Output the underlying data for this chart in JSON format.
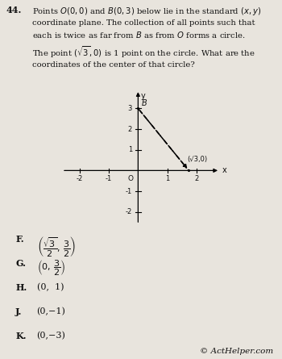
{
  "question_number": "44.",
  "graph": {
    "xlim": [
      -2.6,
      2.8
    ],
    "ylim": [
      -2.6,
      3.9
    ],
    "xticks": [
      -2,
      -1,
      1,
      2
    ],
    "yticks": [
      -2,
      -1,
      1,
      2,
      3
    ],
    "origin_label": "O",
    "x_label": "x",
    "y_label": "y",
    "point_B": [
      0,
      3
    ],
    "point_B_label": "B",
    "point_sqrt3_x": 1.732,
    "point_sqrt3_y": 0,
    "point_sqrt3_label": "(√3,0)"
  },
  "choices": [
    {
      "label": "F.",
      "math": "$\\left(\\dfrac{\\sqrt{3}}{2},\\,\\dfrac{3}{2}\\right)$"
    },
    {
      "label": "G.",
      "math": "$\\left(0,\\,\\dfrac{3}{2}\\right)$"
    },
    {
      "label": "H.",
      "plain": "(0,  1)"
    },
    {
      "label": "J.",
      "plain": "(0,−1)"
    },
    {
      "label": "K.",
      "plain": "(0,−3)"
    }
  ],
  "watermark": "© ActHelper.com",
  "bg_color": "#e8e4dd",
  "text_color": "#111111"
}
